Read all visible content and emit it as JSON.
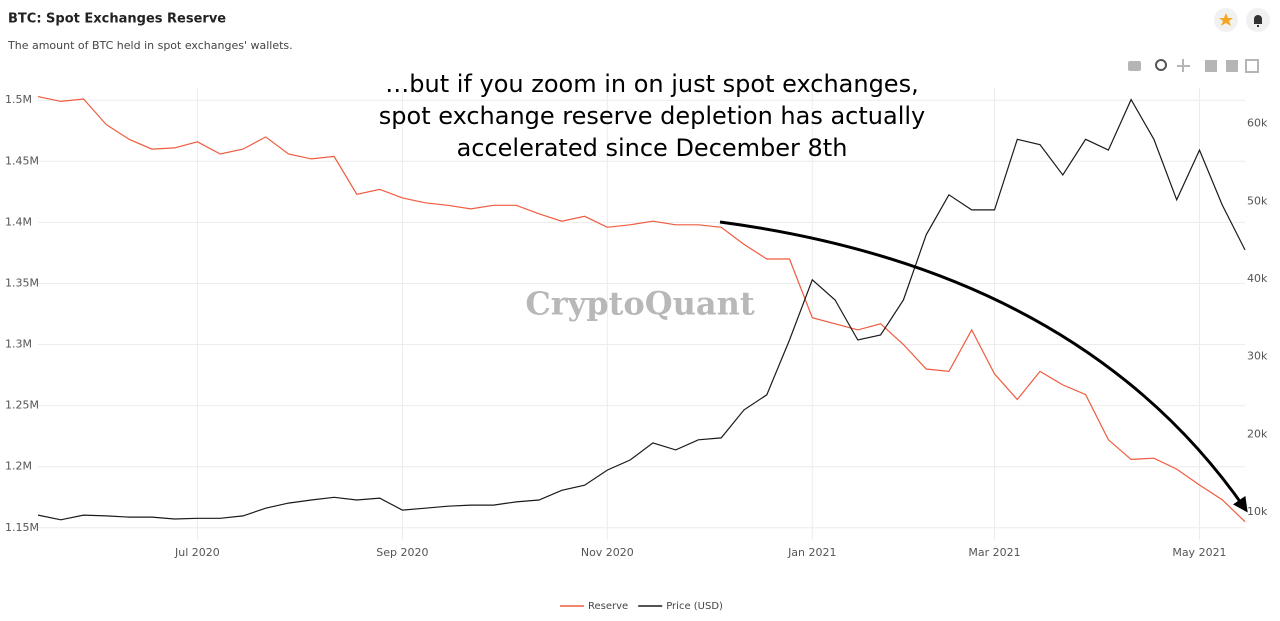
{
  "header": {
    "title": "BTC: Spot Exchanges Reserve",
    "subtitle": "The amount of BTC held in spot exchanges' wallets."
  },
  "chart_data": {
    "type": "line",
    "annotation": [
      "…but if you zoom in on just spot exchanges,",
      "spot exchange reserve depletion has actually",
      "accelerated since December 8th"
    ],
    "watermark": "CryptoQuant",
    "categories": [
      null,
      null,
      null,
      null,
      null,
      null,
      null,
      "Jul 2020",
      null,
      null,
      null,
      null,
      null,
      null,
      null,
      null,
      "Sep 2020",
      null,
      null,
      null,
      null,
      null,
      null,
      null,
      null,
      "Nov 2020",
      null,
      null,
      null,
      null,
      null,
      null,
      null,
      null,
      "Jan 2021",
      null,
      null,
      null,
      null,
      null,
      null,
      null,
      "Mar 2021",
      null,
      null,
      null,
      null,
      null,
      null,
      null,
      null,
      "May 2021",
      null,
      null
    ],
    "series": [
      {
        "name": "Reserve",
        "color": "#ef5b3f",
        "axis": "y",
        "values": [
          1503000,
          1499000,
          1501000,
          1480000,
          1468000,
          1460000,
          1461000,
          1466000,
          1456000,
          1460000,
          1470000,
          1456000,
          1452000,
          1454000,
          1423000,
          1427000,
          1420000,
          1416000,
          1414000,
          1411000,
          1414000,
          1414000,
          1407000,
          1401000,
          1405000,
          1396000,
          1398000,
          1401000,
          1398000,
          1398000,
          1396000,
          1382000,
          1370000,
          1370000,
          1322000,
          1317000,
          1312000,
          1317000,
          1300000,
          1280000,
          1278000,
          1312000,
          1276000,
          1255000,
          1278000,
          1267000,
          1259000,
          1222000,
          1206000,
          1207000,
          1198000,
          1185000,
          1173000,
          1155000
        ]
      },
      {
        "name": "Price (USD)",
        "color": "#1a1a1a",
        "axis": "y2",
        "values": [
          9600,
          9000,
          9600,
          9500,
          9350,
          9350,
          9100,
          9200,
          9200,
          9500,
          10500,
          11150,
          11550,
          11900,
          11550,
          11800,
          10250,
          10500,
          10750,
          10900,
          10900,
          11300,
          11550,
          12800,
          13450,
          15400,
          16700,
          18900,
          18000,
          19300,
          19550,
          23150,
          25100,
          32150,
          39900,
          37300,
          32150,
          32800,
          37300,
          45700,
          50850,
          48900,
          48900,
          58000,
          57300,
          53400,
          58000,
          56600,
          63100,
          58000,
          50200,
          56600,
          49550,
          43750
        ]
      }
    ],
    "ylim": [
      1140000,
      1510000
    ],
    "yticks": [
      {
        "value": 1150000,
        "label": "1.15M"
      },
      {
        "value": 1200000,
        "label": "1.2M"
      },
      {
        "value": 1250000,
        "label": "1.25M"
      },
      {
        "value": 1300000,
        "label": "1.3M"
      },
      {
        "value": 1350000,
        "label": "1.35M"
      },
      {
        "value": 1400000,
        "label": "1.4M"
      },
      {
        "value": 1450000,
        "label": "1.45M"
      },
      {
        "value": 1500000,
        "label": "1.5M"
      }
    ],
    "y2lim": [
      6400,
      64600
    ],
    "y2ticks": [
      {
        "value": 10000,
        "label": "10k"
      },
      {
        "value": 20000,
        "label": "20k"
      },
      {
        "value": 30000,
        "label": "30k"
      },
      {
        "value": 40000,
        "label": "40k"
      },
      {
        "value": 50000,
        "label": "50k"
      },
      {
        "value": 60000,
        "label": "60k"
      }
    ],
    "grid": true,
    "legend": "bottom"
  }
}
